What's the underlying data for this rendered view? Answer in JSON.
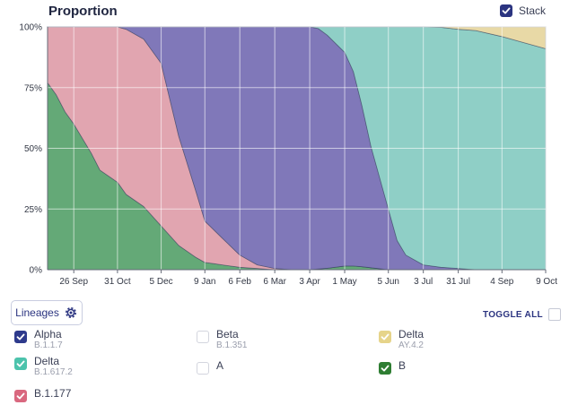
{
  "header": {
    "title": "Proportion",
    "stack_label": "Stack",
    "stack_checked": true
  },
  "controls": {
    "lineages_label": "Lineages",
    "toggle_all_label": "TOGGLE ALL"
  },
  "legend": [
    {
      "name": "Alpha",
      "sub": "B.1.1.7",
      "checked": true,
      "color": "#2e3a8c"
    },
    {
      "name": "Beta",
      "sub": "B.1.351",
      "checked": false,
      "color": "#d3d5de"
    },
    {
      "name": "Delta",
      "sub": "AY.4.2",
      "checked": true,
      "color": "#e6d48a"
    },
    {
      "name": "Delta",
      "sub": "B.1.617.2",
      "checked": true,
      "color": "#4cc3ac"
    },
    {
      "name": "A",
      "sub": "",
      "checked": false,
      "color": "#d3d5de"
    },
    {
      "name": "B",
      "sub": "",
      "checked": true,
      "color": "#2e7d32"
    },
    {
      "name": "B.1.177",
      "sub": "",
      "checked": true,
      "color": "#d9687f"
    }
  ],
  "chart_data": {
    "type": "area",
    "stacked": true,
    "title": "Proportion",
    "x_tick_labels": [
      "26 Sep",
      "31 Oct",
      "5 Dec",
      "9 Jan",
      "6 Feb",
      "6 Mar",
      "3 Apr",
      "1 May",
      "5 Jun",
      "3 Jul",
      "31 Jul",
      "4 Sep",
      "9 Oct"
    ],
    "y_tick_labels": [
      "100%",
      "75%",
      "50%",
      "25%",
      "0%"
    ],
    "ylim": [
      0,
      100
    ],
    "grid": true,
    "x": [
      "2020-09-05",
      "2020-09-12",
      "2020-09-19",
      "2020-09-26",
      "2020-10-10",
      "2020-10-17",
      "2020-10-31",
      "2020-11-07",
      "2020-11-21",
      "2020-12-05",
      "2020-12-19",
      "2021-01-02",
      "2021-01-09",
      "2021-01-16",
      "2021-01-23",
      "2021-02-06",
      "2021-02-20",
      "2021-03-06",
      "2021-03-20",
      "2021-04-03",
      "2021-04-10",
      "2021-04-17",
      "2021-05-01",
      "2021-05-08",
      "2021-05-15",
      "2021-05-22",
      "2021-06-05",
      "2021-06-12",
      "2021-06-19",
      "2021-07-03",
      "2021-07-17",
      "2021-07-31",
      "2021-08-14",
      "2021-09-04",
      "2021-09-18",
      "2021-10-09"
    ],
    "series": [
      {
        "name": "B",
        "color": "#64a977",
        "values": [
          77,
          72,
          65,
          60,
          48,
          41,
          36,
          31,
          26,
          18,
          10,
          5,
          3,
          2.5,
          2,
          1,
          0.5,
          0,
          0,
          0,
          0.3,
          0.6,
          1.5,
          1.5,
          1.2,
          0.8,
          0,
          0,
          0,
          0,
          0,
          0,
          0,
          0,
          0,
          0
        ]
      },
      {
        "name": "B.1.177",
        "color": "#e1a5b0",
        "values": [
          23,
          28,
          35,
          40,
          52,
          59,
          64,
          68,
          69,
          67,
          45,
          27,
          17,
          14,
          11,
          5,
          1.5,
          0.5,
          0,
          0,
          0,
          0,
          0,
          0,
          0,
          0,
          0,
          0,
          0,
          0,
          0,
          0,
          0,
          0,
          0,
          0
        ]
      },
      {
        "name": "Alpha",
        "color": "#8078b9",
        "values": [
          0,
          0,
          0,
          0,
          0,
          0,
          0,
          1,
          5,
          15,
          45,
          68,
          80,
          83.5,
          87,
          94,
          98,
          99.5,
          100,
          100,
          99,
          96,
          88,
          80,
          66,
          50,
          25,
          12,
          6,
          2,
          1,
          0.5,
          0,
          0,
          0,
          0
        ]
      },
      {
        "name": "Delta B.1.617.2",
        "color": "#8fcfc6",
        "values": [
          0,
          0,
          0,
          0,
          0,
          0,
          0,
          0,
          0,
          0,
          0,
          0,
          0,
          0,
          0,
          0,
          0,
          0,
          0,
          0,
          0.7,
          3.4,
          10.5,
          18.5,
          32.8,
          49.2,
          75,
          88,
          94,
          98,
          98.8,
          98.5,
          98.5,
          96,
          94,
          91
        ]
      },
      {
        "name": "Delta AY.4.2",
        "color": "#e8d9a6",
        "values": [
          0,
          0,
          0,
          0,
          0,
          0,
          0,
          0,
          0,
          0,
          0,
          0,
          0,
          0,
          0,
          0,
          0,
          0,
          0,
          0,
          0,
          0,
          0,
          0,
          0,
          0,
          0,
          0,
          0,
          0,
          0.2,
          1,
          1.5,
          4,
          6,
          9
        ]
      }
    ]
  }
}
